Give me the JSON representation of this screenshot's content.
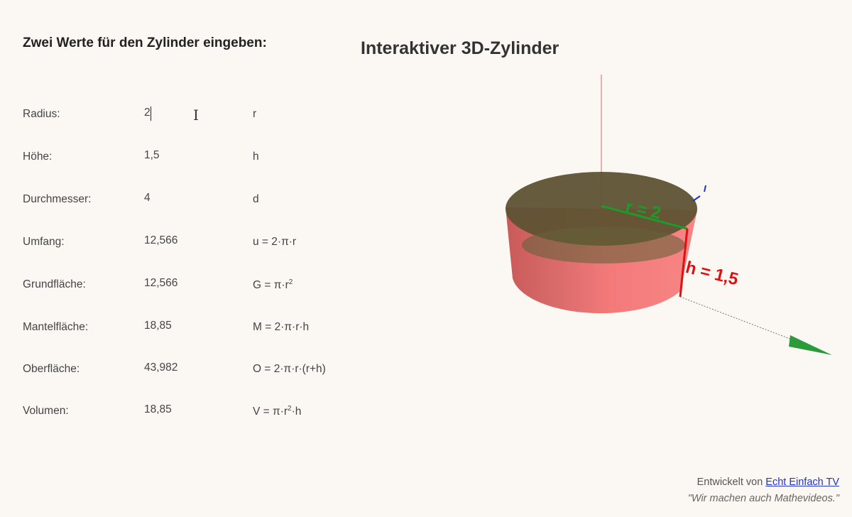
{
  "left_heading": "Zwei Werte für den Zylinder eingeben:",
  "right_heading": "Interaktiver 3D-Zylinder",
  "rows": [
    {
      "label": "Radius:",
      "value": "2",
      "formula": "r"
    },
    {
      "label": "Höhe:",
      "value": "1,5",
      "formula": "h"
    },
    {
      "label": "Durchmesser:",
      "value": "4",
      "formula": "d"
    },
    {
      "label": "Umfang:",
      "value": "12,566",
      "formula": "u = 2·π·r"
    },
    {
      "label": "Grundfläche:",
      "value": "12,566",
      "formula": "G = π·r",
      "sup": "2"
    },
    {
      "label": "Mantelfläche:",
      "value": "18,85",
      "formula": "M = 2·π·r·h"
    },
    {
      "label": "Oberfläche:",
      "value": "43,982",
      "formula": "O = 2·π·r·(r+h)"
    },
    {
      "label": "Volumen:",
      "value": "18,85",
      "formula": "V = π·r",
      "sup": "2",
      "formula_tail": "·h"
    }
  ],
  "scene": {
    "radius_label": "r = 2",
    "height_label": "h = 1,5",
    "colors": {
      "side": "#f47a7a",
      "top": "#5e5231",
      "radius": "#1e9a2a",
      "height": "#e01010",
      "axis_z": "#e06060",
      "axis_y": "#2a9a3a",
      "axis_x": "#2030d0"
    }
  },
  "footer": {
    "developed_by": "Entwickelt von",
    "link": "Echt Einfach TV",
    "quote": "\"Wir machen auch Mathevideos.\""
  }
}
